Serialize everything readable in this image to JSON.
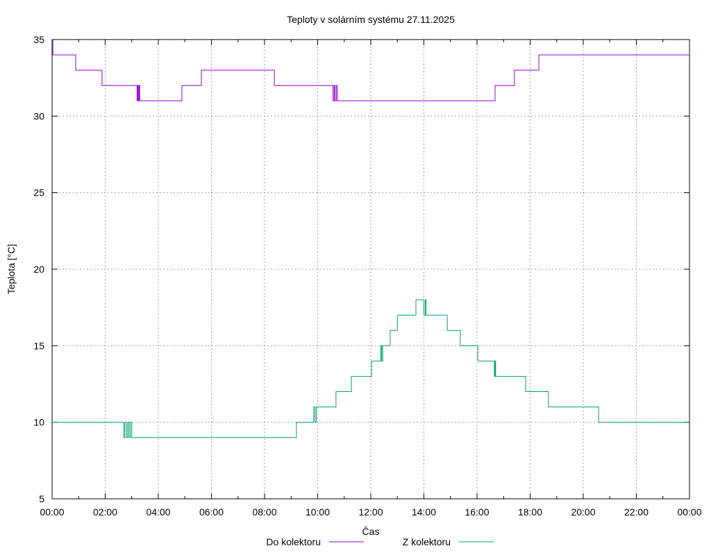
{
  "chart_data": {
    "type": "line",
    "title": "Teploty v solárním systému 27.11.2025",
    "xlabel": "Čas",
    "ylabel": "Teplota [°C]",
    "xlim": [
      0,
      24
    ],
    "ylim": [
      5,
      35
    ],
    "grid": true,
    "legend_position": "bottom-center",
    "x_ticks": [
      "00:00",
      "02:00",
      "04:00",
      "06:00",
      "08:00",
      "10:00",
      "12:00",
      "14:00",
      "16:00",
      "18:00",
      "20:00",
      "22:00",
      "00:00"
    ],
    "y_ticks": [
      "5",
      "10",
      "15",
      "20",
      "25",
      "30",
      "35"
    ],
    "series": [
      {
        "name": "Do kolektoru",
        "color": "#9400d3",
        "step": true,
        "points": [
          [
            0,
            35
          ],
          [
            0.03,
            34
          ],
          [
            0.89,
            33
          ],
          [
            1.88,
            32
          ],
          [
            3.2,
            31
          ],
          [
            3.23,
            32
          ],
          [
            3.26,
            31
          ],
          [
            3.28,
            32
          ],
          [
            3.3,
            31
          ],
          [
            4.89,
            32
          ],
          [
            5.62,
            33
          ],
          [
            8.37,
            32
          ],
          [
            10.58,
            31
          ],
          [
            10.62,
            32
          ],
          [
            10.65,
            31
          ],
          [
            10.7,
            32
          ],
          [
            10.74,
            31
          ],
          [
            16.68,
            32
          ],
          [
            17.41,
            33
          ],
          [
            18.33,
            34
          ],
          [
            24,
            34
          ]
        ]
      },
      {
        "name": "Z kolektoru",
        "color": "#009e73",
        "step": true,
        "points": [
          [
            0,
            10
          ],
          [
            2.7,
            9
          ],
          [
            2.74,
            10
          ],
          [
            2.8,
            9
          ],
          [
            2.85,
            10
          ],
          [
            2.9,
            9
          ],
          [
            2.95,
            10
          ],
          [
            3.0,
            9
          ],
          [
            9.2,
            10
          ],
          [
            9.85,
            11
          ],
          [
            9.9,
            10
          ],
          [
            9.95,
            11
          ],
          [
            10.69,
            12
          ],
          [
            11.27,
            13
          ],
          [
            12.03,
            14
          ],
          [
            12.38,
            15
          ],
          [
            12.41,
            14
          ],
          [
            12.45,
            15
          ],
          [
            12.73,
            16
          ],
          [
            13.0,
            17
          ],
          [
            13.7,
            18
          ],
          [
            14.0,
            17
          ],
          [
            14.05,
            18
          ],
          [
            14.08,
            17
          ],
          [
            14.88,
            16
          ],
          [
            15.37,
            15
          ],
          [
            16.03,
            14
          ],
          [
            16.65,
            13
          ],
          [
            16.68,
            14
          ],
          [
            16.7,
            13
          ],
          [
            17.83,
            12
          ],
          [
            18.69,
            11
          ],
          [
            20.58,
            10
          ],
          [
            24,
            10
          ]
        ]
      }
    ]
  }
}
